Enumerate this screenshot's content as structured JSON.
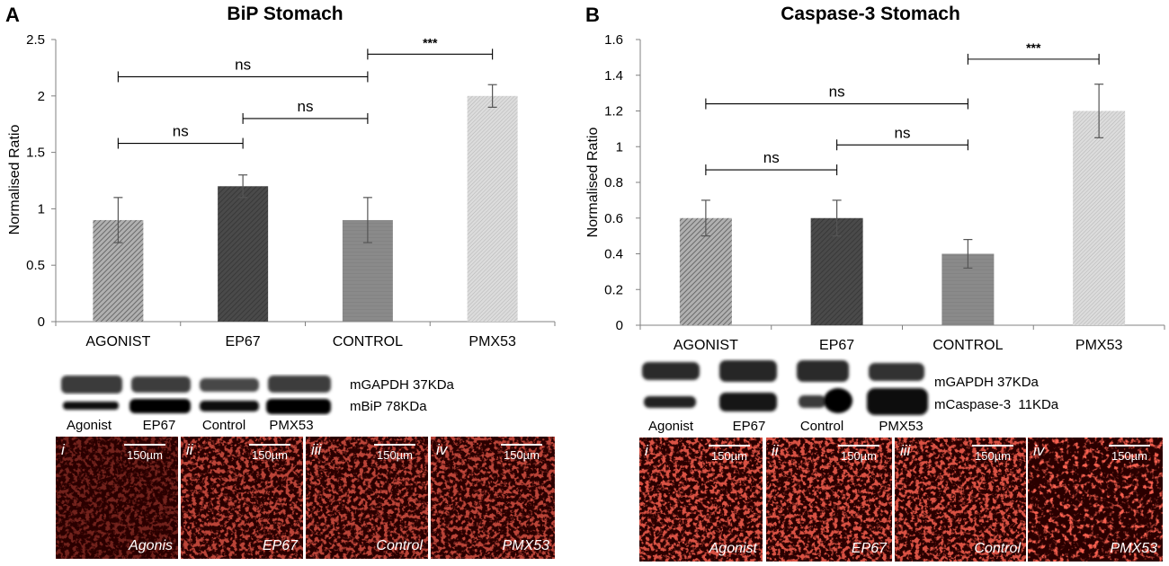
{
  "panels": [
    {
      "letter": "A",
      "chart_data": {
        "type": "bar",
        "title": "BiP Stomach",
        "ylabel": "Normalised Ratio",
        "xlabel": "",
        "categories": [
          "AGONIST",
          "EP67",
          "CONTROL",
          "PMX53"
        ],
        "values": [
          0.9,
          1.2,
          0.9,
          2.0
        ],
        "errors": [
          0.2,
          0.1,
          0.2,
          0.1
        ],
        "ylim": [
          0,
          2.5
        ],
        "yticks": [
          "0",
          "0.5",
          "1",
          "1.5",
          "2",
          "2.5"
        ],
        "grid": false,
        "significance": [
          {
            "from": 0,
            "to": 1,
            "label": "ns",
            "level": 1.58
          },
          {
            "from": 1,
            "to": 2,
            "label": "ns",
            "level": 1.8
          },
          {
            "from": 0,
            "to": 2,
            "label": "ns",
            "level": 2.17
          },
          {
            "from": 2,
            "to": 3,
            "label": "***",
            "level": 2.37
          }
        ]
      },
      "blot": {
        "bands": [
          "mGAPDH 37KDa",
          "mBiP 78KDa"
        ],
        "lanes": [
          "Agonist",
          "EP67",
          "Control",
          "PMX53"
        ]
      },
      "micrographs": [
        {
          "numeral": "i",
          "label": "Agonis",
          "scale": ""
        },
        {
          "numeral": "ii",
          "label": "EP67",
          "scale": "150µm"
        },
        {
          "numeral": "iii",
          "label": "Control",
          "scale": "150µm"
        },
        {
          "numeral": "iv",
          "label": "PMX53",
          "scale": "150µm"
        }
      ],
      "first_scale": "150µm"
    },
    {
      "letter": "B",
      "chart_data": {
        "type": "bar",
        "title": "Caspase-3 Stomach",
        "ylabel": "Normalised Ratio",
        "xlabel": "",
        "categories": [
          "AGONIST",
          "EP67",
          "CONTROL",
          "PMX53"
        ],
        "values": [
          0.6,
          0.6,
          0.4,
          1.2
        ],
        "errors": [
          0.1,
          0.1,
          0.08,
          0.15
        ],
        "ylim": [
          0,
          1.6
        ],
        "yticks": [
          "0",
          "0.2",
          "0.4",
          "0.6",
          "0.8",
          "1",
          "1.2",
          "1.4",
          "1.6"
        ],
        "grid": false,
        "significance": [
          {
            "from": 0,
            "to": 1,
            "label": "ns",
            "level": 0.87
          },
          {
            "from": 1,
            "to": 2,
            "label": "ns",
            "level": 1.01
          },
          {
            "from": 0,
            "to": 2,
            "label": "ns",
            "level": 1.24
          },
          {
            "from": 2,
            "to": 3,
            "label": "***",
            "level": 1.49
          }
        ]
      },
      "blot": {
        "bands": [
          "mGAPDH 37KDa",
          "mCaspase-3  11KDa"
        ],
        "lanes": [
          "Agonist",
          "EP67",
          "Control",
          "PMX53"
        ]
      },
      "micrographs": [
        {
          "numeral": "i",
          "label": "Agonist",
          "scale": "150µm"
        },
        {
          "numeral": "ii",
          "label": "EP67",
          "scale": "150µm"
        },
        {
          "numeral": "iii",
          "label": "Control",
          "scale": "150µm"
        },
        {
          "numeral": "iv",
          "label": "PMX53",
          "scale": "150µm"
        }
      ]
    }
  ],
  "colors": {
    "bar_agonist": "#8c8c8c",
    "bar_ep67": "#454545",
    "bar_control": "#8a8a8a",
    "bar_pmx53": "#cfcfcf",
    "axis": "#808080",
    "micro_bg": "#2a0000",
    "micro_red": "#e0231b"
  }
}
